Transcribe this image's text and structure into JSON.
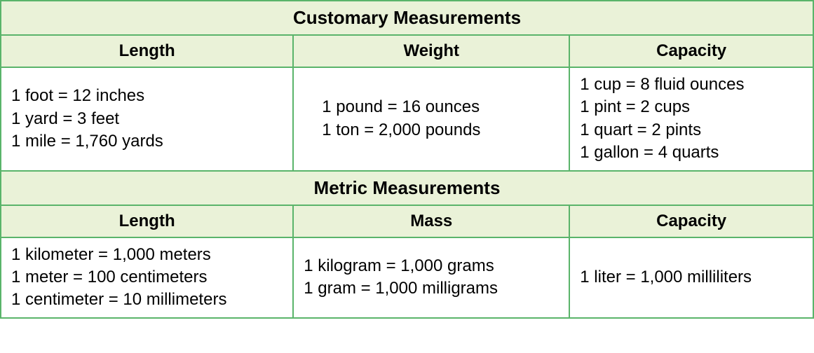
{
  "table": {
    "border_color": "#5ab46a",
    "header_bg": "#eaf2d8",
    "cell_bg": "#ffffff",
    "text_color": "#000000",
    "title_fontsize": 26,
    "header_fontsize": 24,
    "data_fontsize": 24,
    "customary": {
      "title": "Customary Measurements",
      "columns": [
        "Length",
        "Weight",
        "Capacity"
      ],
      "length": [
        "1 foot = 12 inches",
        "1 yard = 3 feet",
        "1 mile = 1,760 yards"
      ],
      "weight": [
        "1 pound = 16 ounces",
        "1 ton = 2,000 pounds"
      ],
      "capacity": [
        "1 cup = 8 fluid ounces",
        "1 pint = 2 cups",
        "1 quart = 2 pints",
        "1 gallon = 4 quarts"
      ]
    },
    "metric": {
      "title": "Metric Measurements",
      "columns": [
        "Length",
        "Mass",
        "Capacity"
      ],
      "length": [
        "1 kilometer = 1,000 meters",
        "1 meter = 100 centimeters",
        "1 centimeter = 10 millimeters"
      ],
      "mass": [
        "1 kilogram = 1,000 grams",
        "1 gram = 1,000 milligrams"
      ],
      "capacity": [
        "1 liter = 1,000 milliliters"
      ]
    }
  }
}
